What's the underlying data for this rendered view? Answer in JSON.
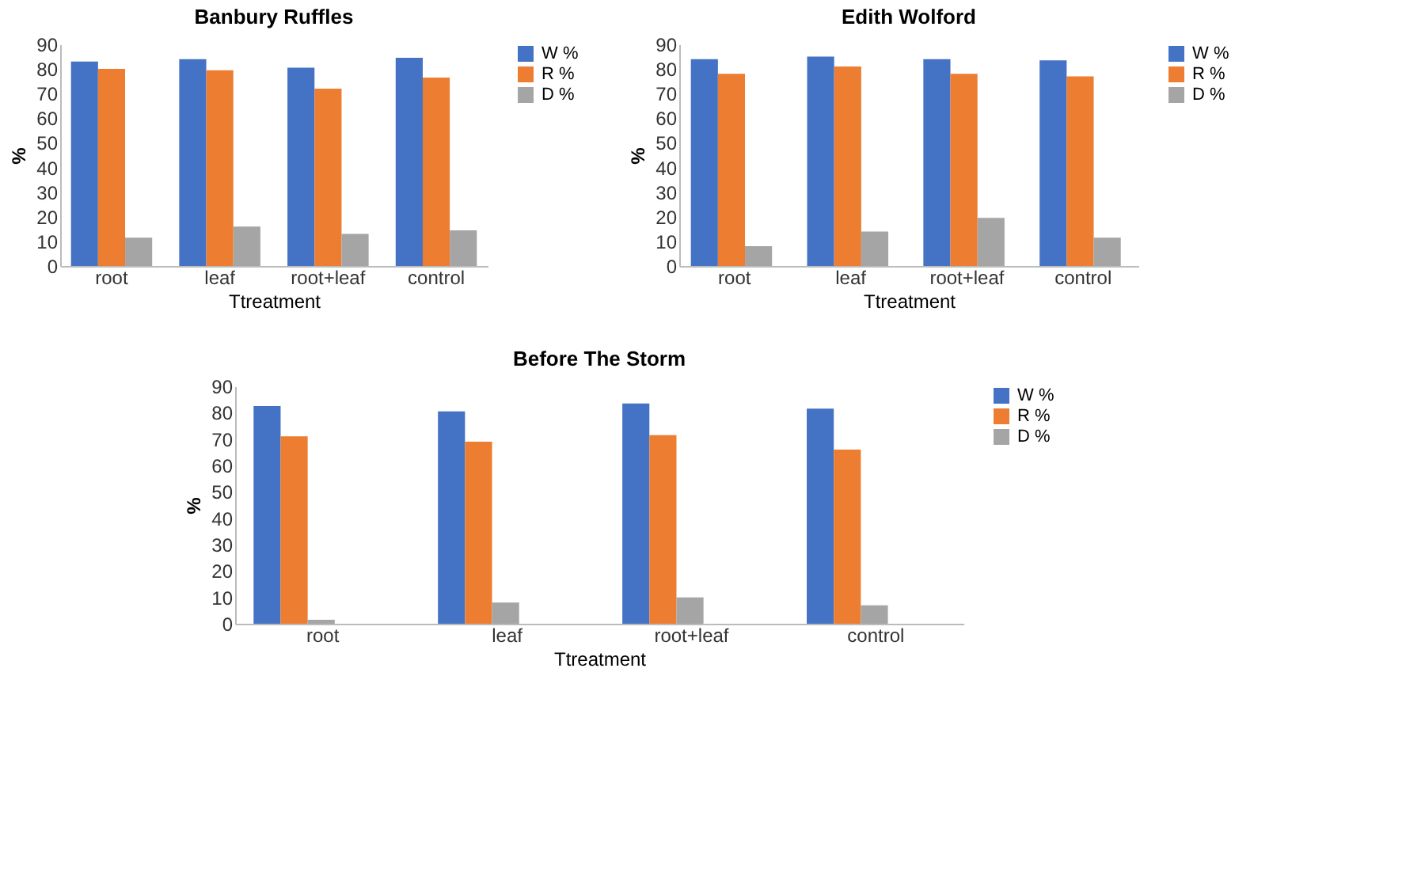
{
  "chart_data": [
    {
      "type": "bar",
      "title": "Banbury Ruffles",
      "xlabel": "Ttreatment",
      "ylabel": "%",
      "categories": [
        "root",
        "leaf",
        "root+leaf",
        "control"
      ],
      "ylim": [
        0,
        90
      ],
      "yticks": [
        0,
        10,
        20,
        30,
        40,
        50,
        60,
        70,
        80,
        90
      ],
      "legend": "right",
      "grid": false,
      "series": [
        {
          "name": "W %",
          "color": "#4472c4",
          "values": [
            83,
            84,
            80.5,
            84.5
          ]
        },
        {
          "name": "R %",
          "color": "#ed7d31",
          "values": [
            80,
            79.5,
            72,
            76.5
          ]
        },
        {
          "name": "D %",
          "color": "#a5a5a5",
          "values": [
            11.5,
            16,
            13,
            14.5
          ]
        }
      ]
    },
    {
      "type": "bar",
      "title": "Edith Wolford",
      "xlabel": "Ttreatment",
      "ylabel": "%",
      "categories": [
        "root",
        "leaf",
        "root+leaf",
        "control"
      ],
      "ylim": [
        0,
        90
      ],
      "yticks": [
        0,
        10,
        20,
        30,
        40,
        50,
        60,
        70,
        80,
        90
      ],
      "legend": "right",
      "grid": false,
      "series": [
        {
          "name": "W %",
          "color": "#4472c4",
          "values": [
            84,
            85,
            84,
            83.5
          ]
        },
        {
          "name": "R %",
          "color": "#ed7d31",
          "values": [
            78,
            81,
            78,
            77
          ]
        },
        {
          "name": "D %",
          "color": "#a5a5a5",
          "values": [
            8,
            14,
            19.5,
            11.5
          ]
        }
      ]
    },
    {
      "type": "bar",
      "title": "Before The Storm",
      "xlabel": "Ttreatment",
      "ylabel": "%",
      "categories": [
        "root",
        "leaf",
        "root+leaf",
        "control"
      ],
      "ylim": [
        0,
        90
      ],
      "yticks": [
        0,
        10,
        20,
        30,
        40,
        50,
        60,
        70,
        80,
        90
      ],
      "legend": "right",
      "grid": false,
      "series": [
        {
          "name": "W %",
          "color": "#4472c4",
          "values": [
            82.5,
            80.5,
            83.5,
            81.5
          ]
        },
        {
          "name": "R %",
          "color": "#ed7d31",
          "values": [
            71,
            69,
            71.5,
            66
          ]
        },
        {
          "name": "D %",
          "color": "#a5a5a5",
          "values": [
            1.5,
            8,
            10,
            7
          ]
        }
      ]
    }
  ]
}
